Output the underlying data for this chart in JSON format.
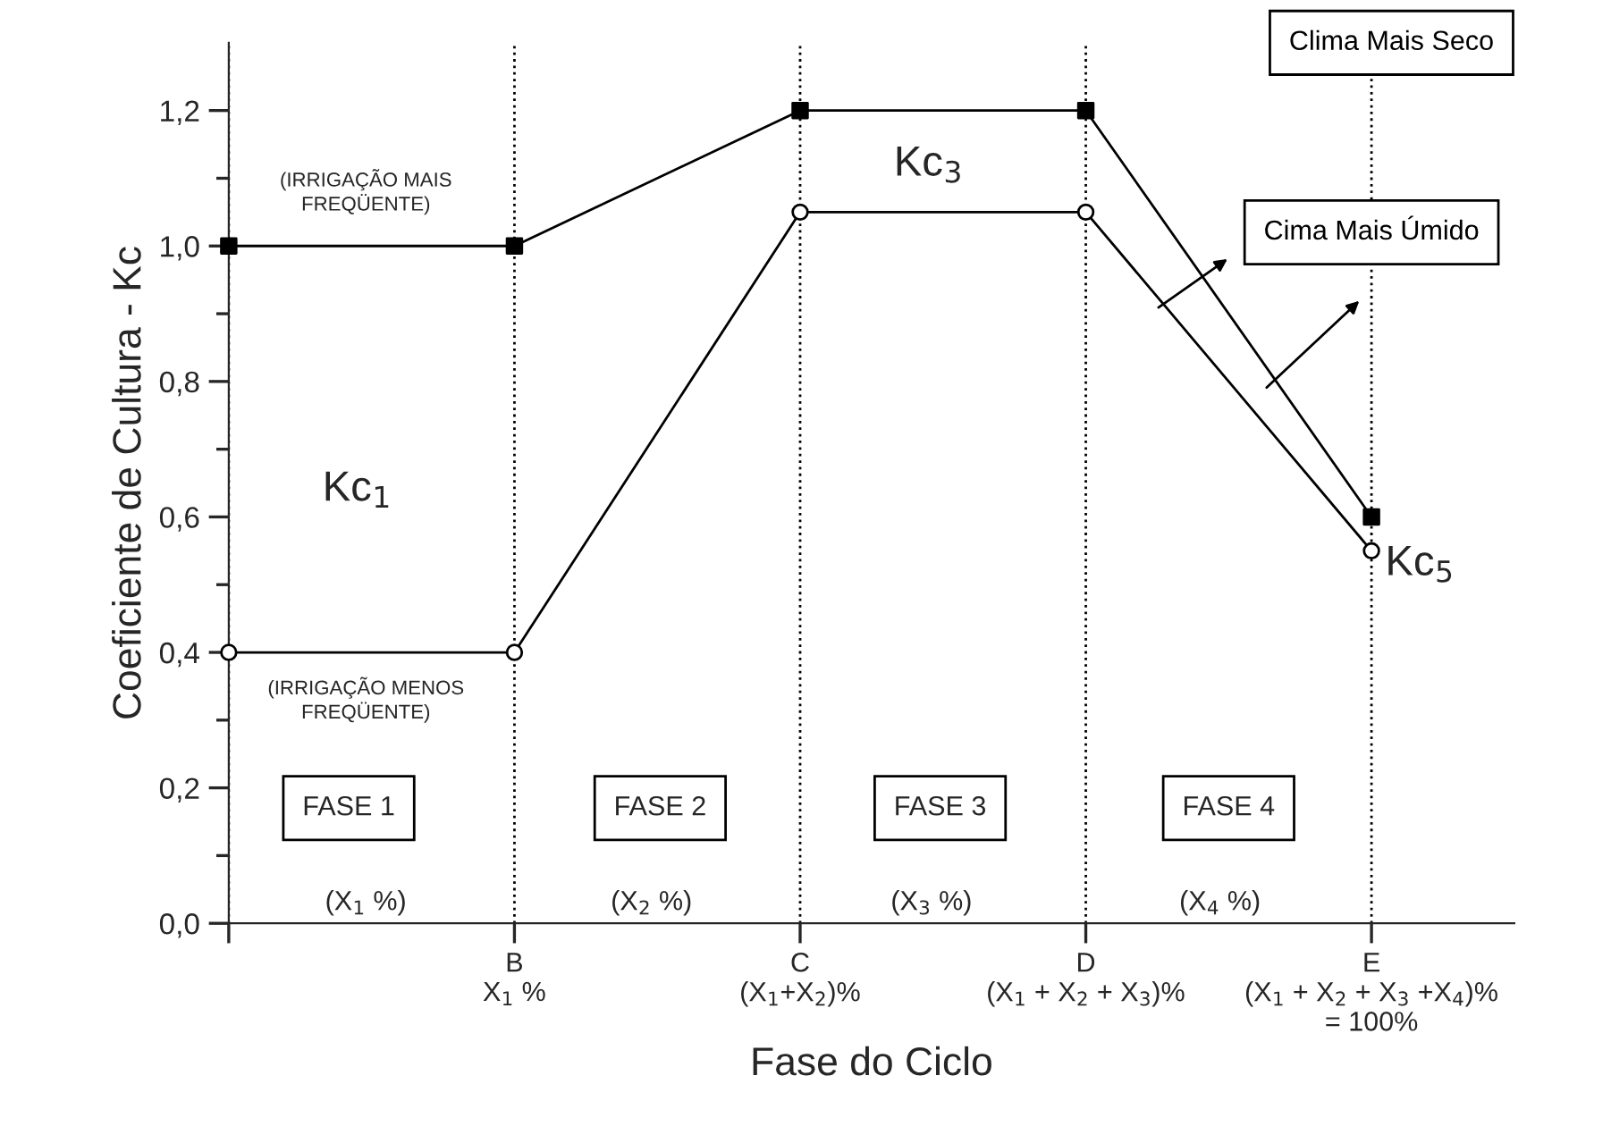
{
  "chart_data": {
    "type": "line",
    "xlabel": "Fase do Ciclo",
    "ylabel": "Coeficiente de Cultura - Kc",
    "categories": [
      null,
      "B\nX$_{1}$ %",
      "C\n(X$_{1}$+X$_{2}$)%",
      "D\n(X$_{1}$ + X$_{2}$ + X$_{3}$)%",
      "E\n(X$_{1}$ + X$_{2}$ + X$_{3}$ +X$_{4}$)%\n= 100%"
    ],
    "series": [
      {
        "name": "Clima Mais Seco",
        "color": "#000000",
        "marker": "square",
        "values": [
          1.0,
          1.0,
          1.2,
          1.2,
          0.6
        ]
      },
      {
        "name": "Cima Mais Úmido",
        "color": "#000000",
        "marker": "circle",
        "values": [
          0.4,
          0.4,
          1.05,
          1.05,
          0.55
        ]
      }
    ],
    "ylim": [
      0,
      1.3
    ],
    "yticks": [
      {
        "value": 0,
        "label": "0,0"
      },
      {
        "value": 0.2,
        "label": "0,2"
      },
      {
        "value": 0.4,
        "label": "0,4"
      },
      {
        "value": 0.6,
        "label": "0,6"
      },
      {
        "value": 0.8,
        "label": "0,8"
      },
      {
        "value": 1.0,
        "label": "1,0"
      },
      {
        "value": 1.2,
        "label": "1,2"
      }
    ],
    "grid": "x",
    "legend": false,
    "line_style": "solid",
    "annotations": [
      "(IRRIGAÇÃO MAIS\nFREQÜENTE)",
      "(IRRIGAÇÃO MENOS\nFREQÜENTE)",
      "Kc$_{1}$",
      "Kc$_{3}$",
      "Kc$_{5}$",
      "FASE 1",
      "FASE 2",
      "FASE 3",
      "FASE 4",
      "(X$_{1}$ %)",
      "(X$_{2}$ %)",
      "(X$_{3}$ %)",
      "(X$_{4}$ %)"
    ]
  }
}
